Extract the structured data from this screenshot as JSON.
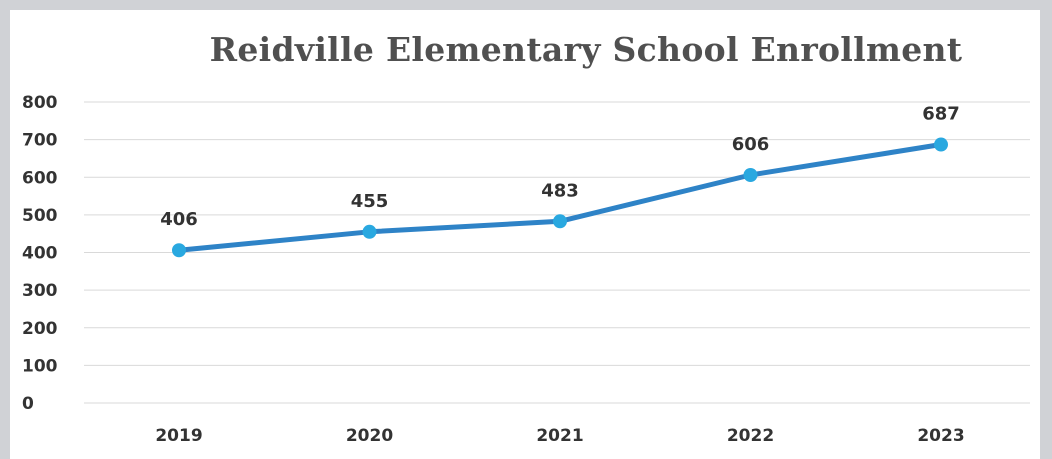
{
  "chart_data": {
    "type": "line",
    "title": "Reidville Elementary School Enrollment",
    "xlabel": "",
    "ylabel": "",
    "categories": [
      "2019",
      "2020",
      "2021",
      "2022",
      "2023"
    ],
    "series": [
      {
        "values": [
          406,
          455,
          483,
          606,
          687
        ],
        "color": "#2e83c7",
        "marker_color": "#29a8e0"
      }
    ],
    "data_labels": [
      "406",
      "455",
      "483",
      "606",
      "687"
    ],
    "ylim": [
      0,
      800
    ],
    "yticks": [
      "0",
      "100",
      "200",
      "300",
      "400",
      "500",
      "600",
      "700",
      "800"
    ],
    "grid": true,
    "legend": "none"
  }
}
